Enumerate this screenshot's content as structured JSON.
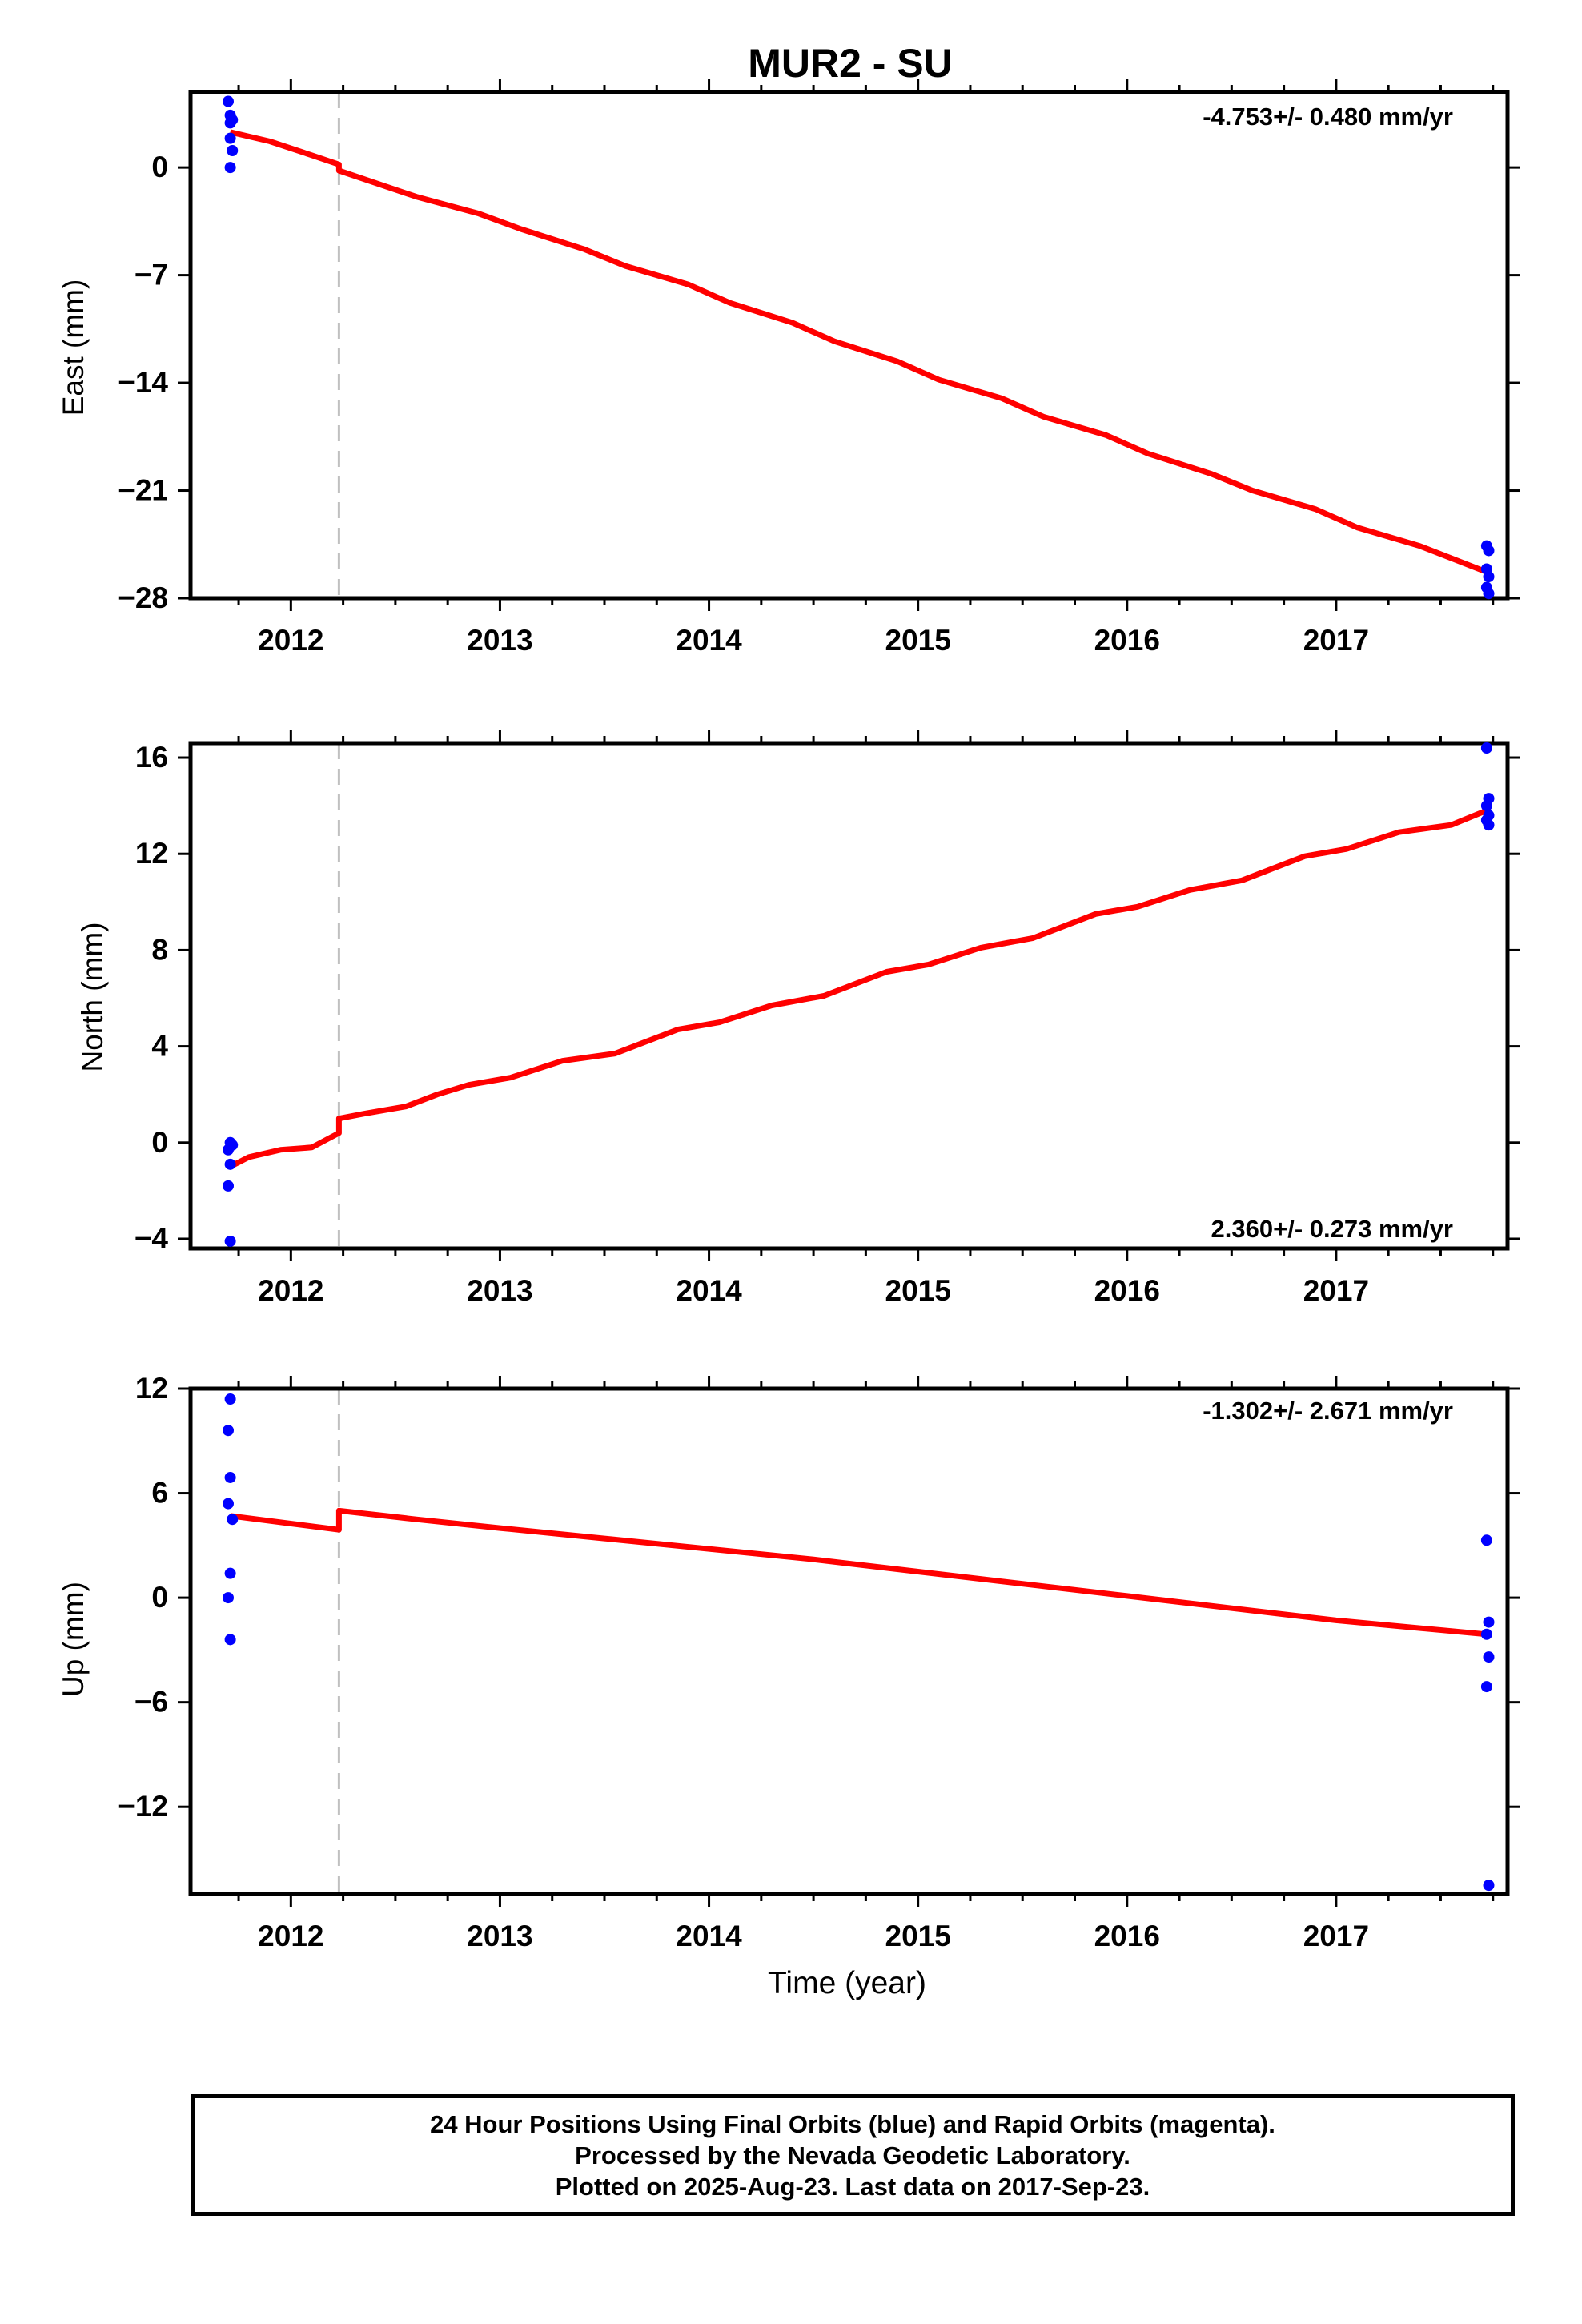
{
  "chart_data": {
    "title": "MUR2 - SU",
    "xlabel": "Time (year)",
    "x_ticks": [
      "2012",
      "2013",
      "2014",
      "2015",
      "2016",
      "2017"
    ],
    "xlim": [
      2011.52,
      2017.82
    ],
    "offset_epoch": 2012.23,
    "colors": {
      "data": "#0000ff",
      "model": "#ff0000",
      "offset_line": "#c0c0c0",
      "frame": "#000000"
    },
    "panels": [
      {
        "name": "east",
        "type": "scatter",
        "ylabel": "East (mm)",
        "ylim": [
          -28,
          4.9
        ],
        "y_ticks": [
          0,
          -7,
          -14,
          -21,
          -28
        ],
        "rate_label": "-4.753+/- 0.480 mm/yr",
        "rate_position": "top-right",
        "observations": [
          {
            "x": 2011.7,
            "y": 4.3
          },
          {
            "x": 2011.71,
            "y": 3.4
          },
          {
            "x": 2011.71,
            "y": 2.9
          },
          {
            "x": 2011.72,
            "y": 3.1
          },
          {
            "x": 2011.71,
            "y": 1.9
          },
          {
            "x": 2011.72,
            "y": 1.1
          },
          {
            "x": 2011.71,
            "y": 0.0
          },
          {
            "x": 2017.72,
            "y": -24.6
          },
          {
            "x": 2017.73,
            "y": -24.9
          },
          {
            "x": 2017.72,
            "y": -26.1
          },
          {
            "x": 2017.73,
            "y": -26.6
          },
          {
            "x": 2017.72,
            "y": -27.3
          },
          {
            "x": 2017.73,
            "y": -27.7
          }
        ],
        "model": [
          [
            2011.71,
            2.3
          ],
          [
            2011.9,
            1.7
          ],
          [
            2012.1,
            0.8
          ],
          [
            2012.23,
            0.2
          ],
          [
            2012.23,
            -0.2
          ],
          [
            2012.6,
            -1.9
          ],
          [
            2012.9,
            -3.0
          ],
          [
            2013.1,
            -4.0
          ],
          [
            2013.4,
            -5.3
          ],
          [
            2013.6,
            -6.4
          ],
          [
            2013.9,
            -7.6
          ],
          [
            2014.1,
            -8.8
          ],
          [
            2014.4,
            -10.1
          ],
          [
            2014.6,
            -11.3
          ],
          [
            2014.9,
            -12.6
          ],
          [
            2015.1,
            -13.8
          ],
          [
            2015.4,
            -15.0
          ],
          [
            2015.6,
            -16.2
          ],
          [
            2015.9,
            -17.4
          ],
          [
            2016.1,
            -18.6
          ],
          [
            2016.4,
            -19.9
          ],
          [
            2016.6,
            -21.0
          ],
          [
            2016.9,
            -22.2
          ],
          [
            2017.1,
            -23.4
          ],
          [
            2017.4,
            -24.6
          ],
          [
            2017.72,
            -26.3
          ]
        ]
      },
      {
        "name": "north",
        "type": "scatter",
        "ylabel": "North (mm)",
        "ylim": [
          -4.4,
          16.6
        ],
        "y_ticks": [
          16,
          12,
          8,
          4,
          0,
          -4
        ],
        "rate_label": "2.360+/- 0.273 mm/yr",
        "rate_position": "bottom-right",
        "observations": [
          {
            "x": 2011.71,
            "y": 0.0
          },
          {
            "x": 2011.72,
            "y": -0.1
          },
          {
            "x": 2011.7,
            "y": -0.3
          },
          {
            "x": 2011.71,
            "y": -0.9
          },
          {
            "x": 2011.7,
            "y": -1.8
          },
          {
            "x": 2011.71,
            "y": -4.1
          },
          {
            "x": 2017.72,
            "y": 16.4
          },
          {
            "x": 2017.73,
            "y": 14.3
          },
          {
            "x": 2017.72,
            "y": 14.0
          },
          {
            "x": 2017.73,
            "y": 13.6
          },
          {
            "x": 2017.72,
            "y": 13.4
          },
          {
            "x": 2017.73,
            "y": 13.2
          }
        ],
        "model": [
          [
            2011.71,
            -1.0
          ],
          [
            2011.8,
            -0.6
          ],
          [
            2011.95,
            -0.3
          ],
          [
            2012.1,
            -0.2
          ],
          [
            2012.23,
            0.4
          ],
          [
            2012.23,
            1.0
          ],
          [
            2012.35,
            1.2
          ],
          [
            2012.55,
            1.5
          ],
          [
            2012.7,
            2.0
          ],
          [
            2012.85,
            2.4
          ],
          [
            2013.05,
            2.7
          ],
          [
            2013.3,
            3.4
          ],
          [
            2013.55,
            3.7
          ],
          [
            2013.7,
            4.2
          ],
          [
            2013.85,
            4.7
          ],
          [
            2014.05,
            5.0
          ],
          [
            2014.3,
            5.7
          ],
          [
            2014.55,
            6.1
          ],
          [
            2014.7,
            6.6
          ],
          [
            2014.85,
            7.1
          ],
          [
            2015.05,
            7.4
          ],
          [
            2015.3,
            8.1
          ],
          [
            2015.55,
            8.5
          ],
          [
            2015.7,
            9.0
          ],
          [
            2015.85,
            9.5
          ],
          [
            2016.05,
            9.8
          ],
          [
            2016.3,
            10.5
          ],
          [
            2016.55,
            10.9
          ],
          [
            2016.7,
            11.4
          ],
          [
            2016.85,
            11.9
          ],
          [
            2017.05,
            12.2
          ],
          [
            2017.3,
            12.9
          ],
          [
            2017.55,
            13.2
          ],
          [
            2017.72,
            13.8
          ]
        ]
      },
      {
        "name": "up",
        "type": "scatter",
        "ylabel": "Up (mm)",
        "ylim": [
          -17,
          12
        ],
        "y_ticks": [
          12,
          6,
          0,
          -6,
          -12
        ],
        "rate_label": "-1.302+/- 2.671 mm/yr",
        "rate_position": "top-right",
        "observations": [
          {
            "x": 2011.71,
            "y": 11.4
          },
          {
            "x": 2011.7,
            "y": 9.6
          },
          {
            "x": 2011.71,
            "y": 6.9
          },
          {
            "x": 2011.7,
            "y": 5.4
          },
          {
            "x": 2011.72,
            "y": 4.5
          },
          {
            "x": 2011.71,
            "y": 1.4
          },
          {
            "x": 2011.7,
            "y": 0.0
          },
          {
            "x": 2011.71,
            "y": -2.4
          },
          {
            "x": 2017.72,
            "y": 3.3
          },
          {
            "x": 2017.73,
            "y": -1.4
          },
          {
            "x": 2017.72,
            "y": -2.1
          },
          {
            "x": 2017.73,
            "y": -3.4
          },
          {
            "x": 2017.72,
            "y": -5.1
          },
          {
            "x": 2017.73,
            "y": -16.5
          }
        ],
        "model": [
          [
            2011.71,
            4.7
          ],
          [
            2012.23,
            3.9
          ],
          [
            2012.23,
            5.0
          ],
          [
            2012.6,
            4.5
          ],
          [
            2013.0,
            4.0
          ],
          [
            2013.5,
            3.4
          ],
          [
            2014.0,
            2.8
          ],
          [
            2014.5,
            2.2
          ],
          [
            2015.0,
            1.5
          ],
          [
            2015.5,
            0.8
          ],
          [
            2016.0,
            0.1
          ],
          [
            2016.5,
            -0.6
          ],
          [
            2017.0,
            -1.3
          ],
          [
            2017.72,
            -2.1
          ]
        ]
      }
    ]
  },
  "footer": {
    "line1": "24 Hour Positions Using Final Orbits (blue) and Rapid Orbits (magenta).",
    "line2": "Processed by the Nevada Geodetic Laboratory.",
    "line3": "Plotted on 2025-Aug-23. Last data on 2017-Sep-23."
  }
}
